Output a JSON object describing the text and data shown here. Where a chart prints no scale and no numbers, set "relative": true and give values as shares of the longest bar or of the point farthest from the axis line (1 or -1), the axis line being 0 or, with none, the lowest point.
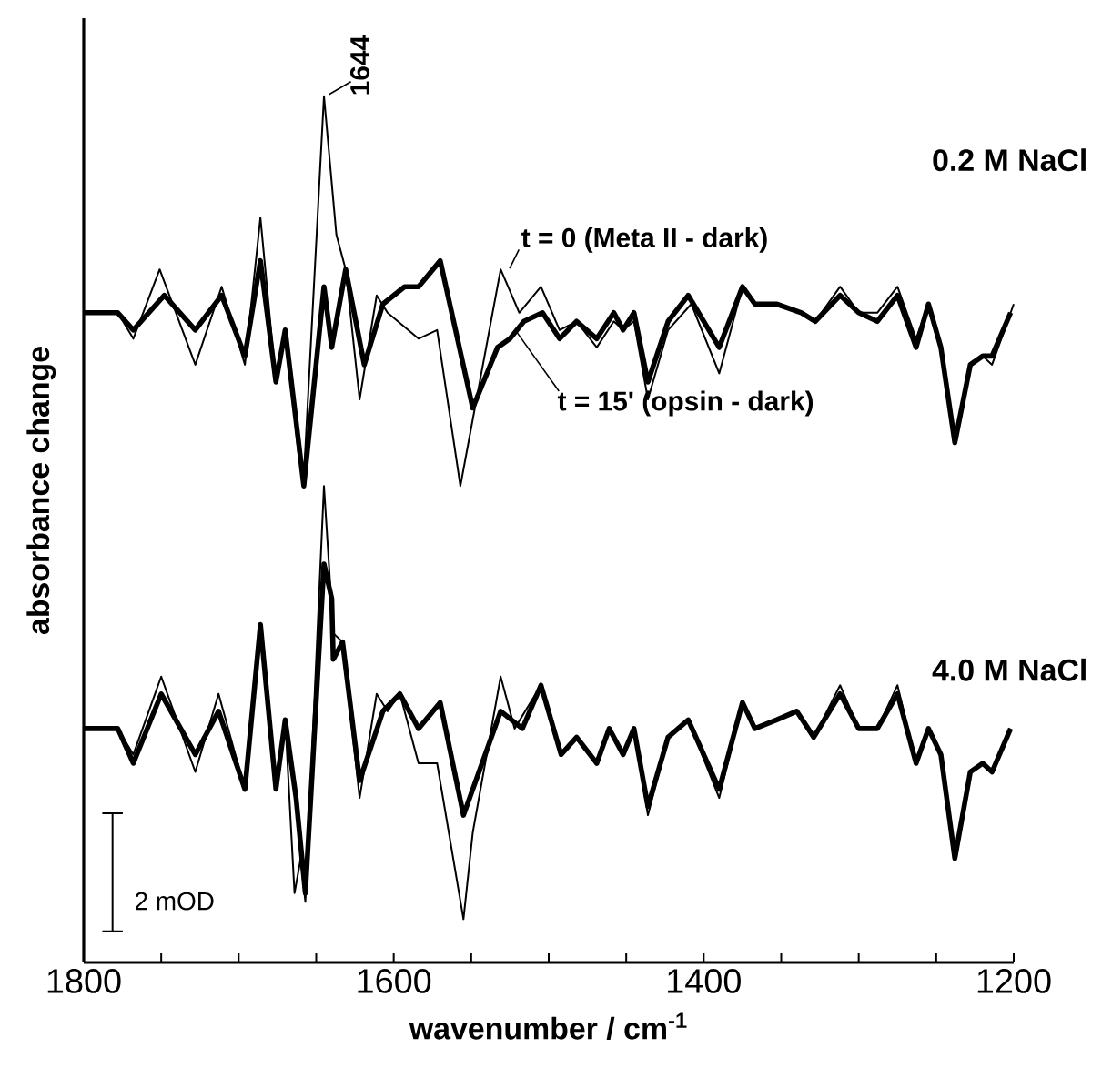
{
  "chart_data": {
    "type": "line",
    "relative": true,
    "xlabel": "wavenumber / cm$^{-1}$",
    "ylabel": "absorbance change",
    "xlim": [
      1800,
      1200
    ],
    "xticks": [
      1800,
      {
        "value": 1750,
        "label": null
      },
      {
        "value": 1700,
        "label": null
      },
      {
        "value": 1650,
        "label": null
      },
      1600,
      {
        "value": 1550,
        "label": null
      },
      {
        "value": 1500,
        "label": null
      },
      {
        "value": 1450,
        "label": null
      },
      1400,
      {
        "value": 1350,
        "label": null
      },
      {
        "value": 1300,
        "label": null
      },
      {
        "value": 1250,
        "label": null
      },
      1200
    ],
    "line_style": "solid",
    "annotations": [
      "0.2 M NaCl",
      "4.0 M NaCl",
      {
        "text": "1644",
        "x": 1644,
        "y": 1.0
      },
      "2 mOD"
    ],
    "series": [
      {
        "name": "t = 0 (Meta II - dark)",
        "color": "#000000",
        "x": [
          1800,
          1778,
          1768,
          1751,
          1728,
          1711,
          1696,
          1686,
          1676,
          1670,
          1661,
          1658,
          1645,
          1637,
          1631,
          1622,
          1611,
          1604,
          1584,
          1572,
          1557,
          1531,
          1519,
          1505,
          1493,
          1482,
          1469,
          1458,
          1452,
          1445,
          1436,
          1423,
          1408,
          1390,
          1375,
          1367,
          1353,
          1337,
          1328,
          1312,
          1300,
          1288,
          1275,
          1263,
          1255,
          1247,
          1238,
          1228,
          1220,
          1214,
          1200
        ],
        "values": [
          0.75,
          0.75,
          0.72,
          0.8,
          0.69,
          0.78,
          0.69,
          0.86,
          0.67,
          0.73,
          0.58,
          0.56,
          1.0,
          0.84,
          0.8,
          0.65,
          0.77,
          0.75,
          0.72,
          0.73,
          0.55,
          0.8,
          0.75,
          0.78,
          0.73,
          0.74,
          0.71,
          0.74,
          0.73,
          0.74,
          0.65,
          0.73,
          0.76,
          0.68,
          0.78,
          0.76,
          0.76,
          0.75,
          0.74,
          0.78,
          0.75,
          0.75,
          0.78,
          0.72,
          0.76,
          0.71,
          0.6,
          0.69,
          0.7,
          0.69,
          0.76
        ]
      },
      {
        "name": "t = 15' (opsin - dark)",
        "color": "#000000",
        "x": [
          1800,
          1778,
          1768,
          1748,
          1728,
          1711,
          1696,
          1686,
          1676,
          1670,
          1658,
          1645,
          1640,
          1631,
          1619,
          1607,
          1593,
          1584,
          1570,
          1549,
          1533,
          1525,
          1516,
          1504,
          1493,
          1482,
          1469,
          1458,
          1452,
          1445,
          1436,
          1423,
          1410,
          1390,
          1375,
          1367,
          1353,
          1337,
          1328,
          1312,
          1300,
          1288,
          1275,
          1263,
          1255,
          1247,
          1238,
          1228,
          1220,
          1214,
          1202
        ],
        "values": [
          0.75,
          0.75,
          0.73,
          0.77,
          0.73,
          0.77,
          0.7,
          0.81,
          0.67,
          0.73,
          0.55,
          0.78,
          0.71,
          0.8,
          0.69,
          0.76,
          0.78,
          0.78,
          0.81,
          0.64,
          0.71,
          0.72,
          0.74,
          0.75,
          0.72,
          0.74,
          0.72,
          0.75,
          0.73,
          0.75,
          0.67,
          0.74,
          0.77,
          0.71,
          0.78,
          0.76,
          0.76,
          0.75,
          0.74,
          0.77,
          0.75,
          0.74,
          0.77,
          0.71,
          0.76,
          0.71,
          0.6,
          0.69,
          0.7,
          0.7,
          0.75
        ]
      },
      {
        "color": "#000000",
        "x": [
          1800,
          1778,
          1768,
          1750,
          1728,
          1713,
          1696,
          1686,
          1676,
          1670,
          1664,
          1660,
          1657,
          1645,
          1639,
          1633,
          1622,
          1611,
          1604,
          1596,
          1584,
          1572,
          1555,
          1549,
          1531,
          1522,
          1505,
          1492,
          1482,
          1469,
          1461,
          1452,
          1445,
          1436,
          1423,
          1410,
          1390,
          1375,
          1367,
          1353,
          1340,
          1329,
          1312,
          1300,
          1288,
          1275,
          1263,
          1255,
          1247,
          1238,
          1228,
          1220,
          1214,
          1202
        ],
        "values": [
          0.27,
          0.27,
          0.24,
          0.33,
          0.22,
          0.31,
          0.2,
          0.39,
          0.21,
          0.28,
          0.08,
          0.12,
          0.07,
          0.55,
          0.38,
          0.37,
          0.19,
          0.31,
          0.29,
          0.31,
          0.23,
          0.23,
          0.05,
          0.15,
          0.33,
          0.27,
          0.32,
          0.24,
          0.26,
          0.23,
          0.27,
          0.24,
          0.27,
          0.17,
          0.26,
          0.28,
          0.19,
          0.3,
          0.27,
          0.28,
          0.29,
          0.26,
          0.32,
          0.27,
          0.27,
          0.32,
          0.23,
          0.27,
          0.24,
          0.12,
          0.22,
          0.23,
          0.22,
          0.27
        ]
      },
      {
        "color": "#000000",
        "x": [
          1800,
          1778,
          1768,
          1750,
          1728,
          1713,
          1696,
          1686,
          1676,
          1670,
          1663,
          1657,
          1645,
          1640,
          1639,
          1633,
          1622,
          1607,
          1596,
          1584,
          1570,
          1555,
          1541,
          1531,
          1517,
          1505,
          1492,
          1482,
          1469,
          1461,
          1452,
          1445,
          1436,
          1423,
          1410,
          1390,
          1375,
          1367,
          1353,
          1340,
          1329,
          1312,
          1300,
          1288,
          1275,
          1263,
          1255,
          1247,
          1238,
          1228,
          1220,
          1214,
          1202
        ],
        "values": [
          0.27,
          0.27,
          0.23,
          0.31,
          0.24,
          0.29,
          0.2,
          0.39,
          0.2,
          0.28,
          0.19,
          0.08,
          0.46,
          0.42,
          0.35,
          0.37,
          0.21,
          0.29,
          0.31,
          0.27,
          0.3,
          0.17,
          0.24,
          0.29,
          0.27,
          0.32,
          0.24,
          0.26,
          0.23,
          0.27,
          0.24,
          0.27,
          0.18,
          0.26,
          0.28,
          0.2,
          0.3,
          0.27,
          0.28,
          0.29,
          0.26,
          0.31,
          0.27,
          0.27,
          0.31,
          0.23,
          0.27,
          0.24,
          0.12,
          0.22,
          0.23,
          0.22,
          0.27
        ]
      }
    ]
  }
}
